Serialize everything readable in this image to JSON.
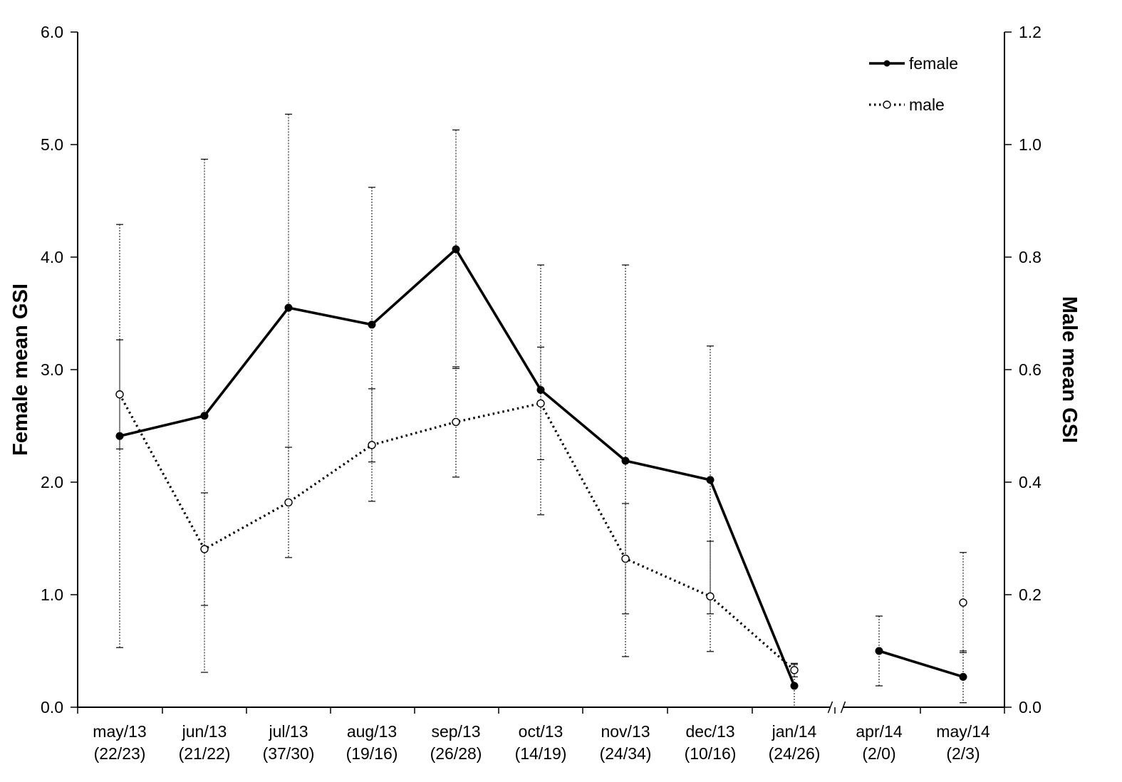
{
  "chart_data": {
    "type": "line",
    "categories": [
      [
        "may/13",
        "(22/23)"
      ],
      [
        "jun/13",
        "(21/22)"
      ],
      [
        "jul/13",
        "(37/30)"
      ],
      [
        "aug/13",
        "(19/16)"
      ],
      [
        "sep/13",
        "(26/28)"
      ],
      [
        "oct/13",
        "(14/19)"
      ],
      [
        "nov/13",
        "(24/34)"
      ],
      [
        "dec/13",
        "(10/16)"
      ],
      [
        "jan/14",
        "(24/26)"
      ],
      [
        "apr/14",
        "(2/0)"
      ],
      [
        "may/14",
        "(2/3)"
      ]
    ],
    "axis_break_after_index": 8,
    "y_left": {
      "label": "Female mean GSI",
      "lim": [
        0,
        6
      ],
      "ticks": [
        "0.0",
        "1.0",
        "2.0",
        "3.0",
        "4.0",
        "5.0",
        "6.0"
      ]
    },
    "y_right": {
      "label": "Male mean GSI",
      "lim": [
        0,
        1.2
      ],
      "ticks": [
        "0.0",
        "0.2",
        "0.4",
        "0.6",
        "0.8",
        "1.0",
        "1.2"
      ]
    },
    "series": [
      {
        "name": "female",
        "axis": "left",
        "style": "solid",
        "marker": "filled",
        "values": [
          2.41,
          2.59,
          3.55,
          3.4,
          4.07,
          2.82,
          2.19,
          2.02,
          0.19,
          0.5,
          0.27
        ],
        "error": [
          1.88,
          2.28,
          1.72,
          1.22,
          1.06,
          1.11,
          1.74,
          1.19,
          0.19,
          0.31,
          0.23
        ],
        "break_after_index": 8
      },
      {
        "name": "male",
        "axis": "right",
        "style": "dotted",
        "marker": "open",
        "values": [
          0.556,
          0.281,
          0.364,
          0.466,
          0.507,
          0.54,
          0.264,
          0.197,
          0.066,
          null,
          0.186
        ],
        "error": [
          0.097,
          0.1,
          0.098,
          0.1,
          0.098,
          0.1,
          0.098,
          0.098,
          0.012,
          null,
          0.089
        ],
        "show_line_to_index": 8
      }
    ],
    "legend": {
      "position": "top-right",
      "entries": [
        "female",
        "male"
      ]
    },
    "grid": false
  }
}
